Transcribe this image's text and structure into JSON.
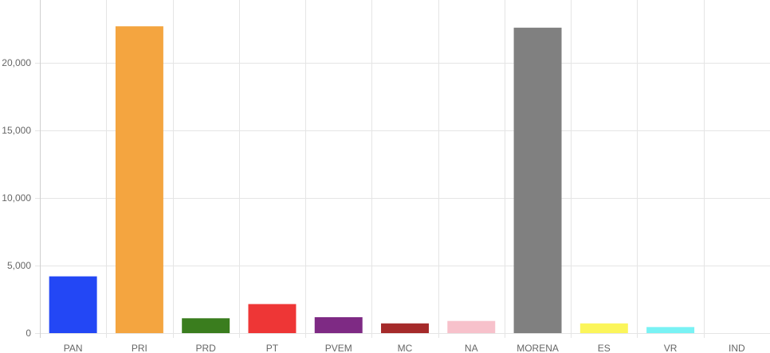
{
  "chart_data": {
    "type": "bar",
    "categories": [
      "PAN",
      "PRI",
      "PRD",
      "PT",
      "PVEM",
      "MC",
      "NA",
      "MORENA",
      "ES",
      "VR",
      "IND"
    ],
    "values": [
      4200,
      22700,
      1100,
      2150,
      1180,
      720,
      900,
      22600,
      720,
      450,
      0
    ],
    "colors": [
      "#2347f5",
      "#f4a540",
      "#3a7d1e",
      "#ee3636",
      "#7e2a84",
      "#a52a2a",
      "#f7c1cb",
      "#808080",
      "#fbf55a",
      "#79f2f4",
      "#cccccc"
    ],
    "y_ticks": [
      "0",
      "5,000",
      "10,000",
      "15,000",
      "20,000"
    ],
    "y_tick_values": [
      0,
      5000,
      10000,
      15000,
      20000
    ],
    "ylim": [
      0,
      25000
    ],
    "grid": true,
    "gridline_color": "#e5e5e5",
    "title": "",
    "xlabel": "",
    "ylabel": ""
  }
}
